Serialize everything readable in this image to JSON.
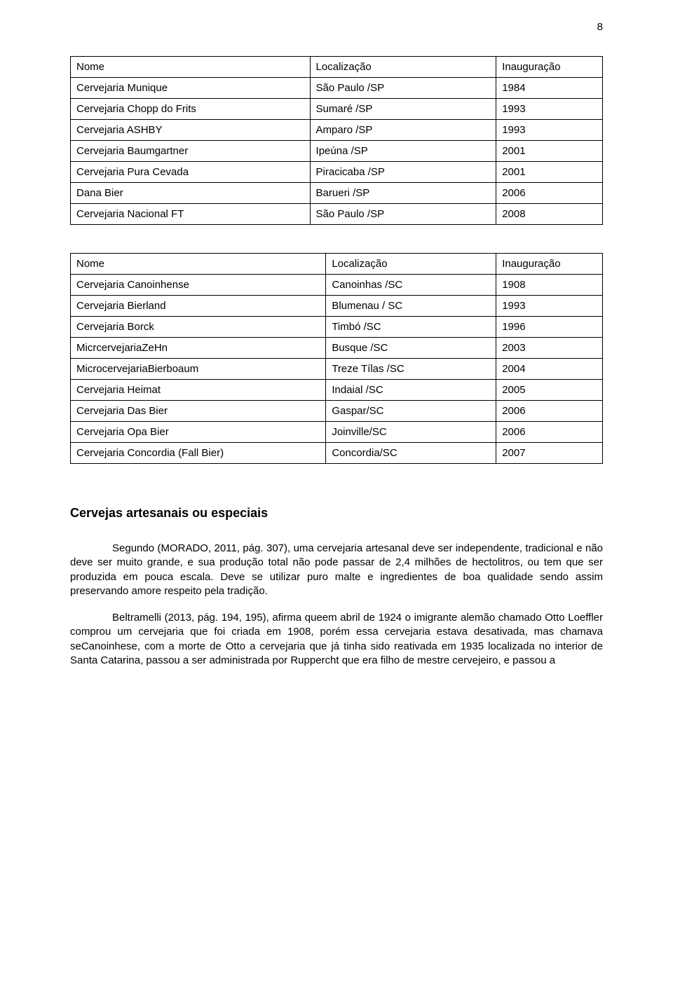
{
  "page_number": "8",
  "table1": {
    "header": {
      "name": "Nome",
      "loc": "Localização",
      "year": "Inauguração"
    },
    "rows": [
      {
        "name": "Cervejaria Munique",
        "loc": "São Paulo /SP",
        "year": "1984"
      },
      {
        "name": "Cervejaria Chopp do Frits",
        "loc": "Sumaré /SP",
        "year": "1993"
      },
      {
        "name": "Cervejaria ASHBY",
        "loc": "Amparo /SP",
        "year": "1993"
      },
      {
        "name": "Cervejaria Baumgartner",
        "loc": "Ipeúna /SP",
        "year": "2001"
      },
      {
        "name": "Cervejaria Pura Cevada",
        "loc": "Piracicaba /SP",
        "year": "2001"
      },
      {
        "name": "Dana Bier",
        "loc": "Barueri /SP",
        "year": "2006"
      },
      {
        "name": "Cervejaria Nacional FT",
        "loc": "São Paulo /SP",
        "year": "2008"
      }
    ]
  },
  "table2": {
    "header": {
      "name": "Nome",
      "loc": "Localização",
      "year": "Inauguração"
    },
    "rows": [
      {
        "name": "Cervejaria Canoinhense",
        "loc": "Canoinhas /SC",
        "year": "1908"
      },
      {
        "name": "Cervejaria Bierland",
        "loc": "Blumenau / SC",
        "year": "1993"
      },
      {
        "name": "Cervejaria Borck",
        "loc": "Timbó /SC",
        "year": "1996"
      },
      {
        "name": "MicrcervejariaZeHn",
        "loc": "Busque /SC",
        "year": "2003"
      },
      {
        "name": "MicrocervejariaBierboaum",
        "loc": "Treze Tílas /SC",
        "year": "2004"
      },
      {
        "name": "Cervejaria Heimat",
        "loc": "Indaial /SC",
        "year": "2005"
      },
      {
        "name": "Cervejaria Das Bier",
        "loc": "Gaspar/SC",
        "year": "2006"
      },
      {
        "name": "Cervejaria Opa Bier",
        "loc": "Joinville/SC",
        "year": "2006"
      },
      {
        "name": "Cervejaria Concordia (Fall Bier)",
        "loc": "Concordia/SC",
        "year": "2007"
      }
    ]
  },
  "section_title": "Cervejas artesanais ou especiais",
  "paragraphs": {
    "p1": "Segundo (MORADO, 2011, pág. 307), uma cervejaria artesanal deve ser independente, tradicional e não deve ser muito grande, e sua produção total não pode passar de 2,4 milhões de hectolitros, ou tem que ser produzida em pouca escala. Deve se utilizar puro malte e ingredientes de boa qualidade sendo assim preservando amore respeito pela tradição.",
    "p2": "Beltramelli (2013, pág. 194, 195), afirma queem abril de 1924 o imigrante alemão chamado Otto Loeffler comprou um cervejaria que foi criada em 1908, porém essa cervejaria estava desativada, mas chamava seCanoinhese, com a morte de Otto a cervejaria que já tinha sido reativada em 1935 localizada no interior de Santa Catarina, passou a ser administrada por Ruppercht que era filho de mestre cervejeiro, e passou a"
  }
}
